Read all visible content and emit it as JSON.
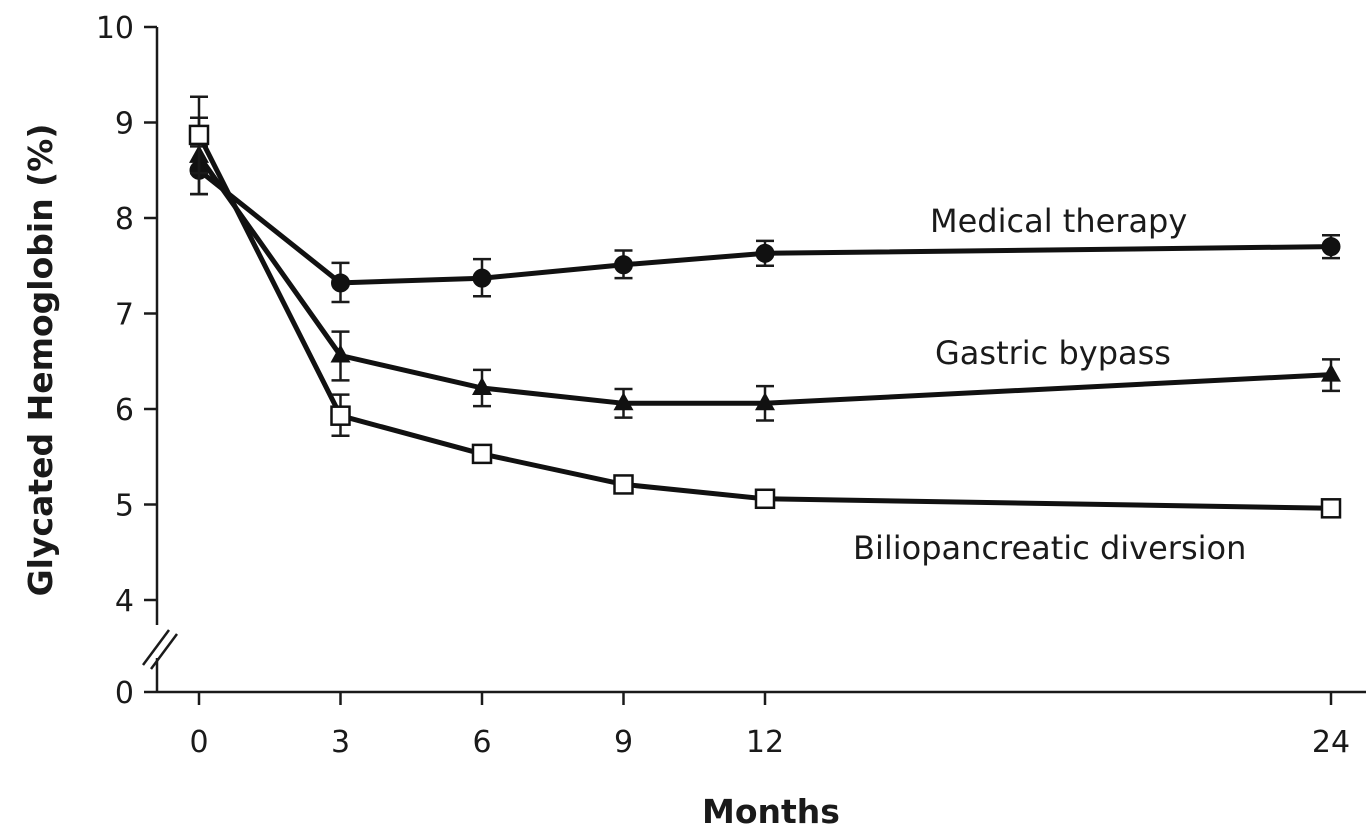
{
  "chart_data": {
    "type": "line",
    "title": "",
    "xlabel": "Months",
    "ylabel": "Glycated Hemoglobin (%)",
    "x": [
      0,
      3,
      6,
      9,
      12,
      24
    ],
    "x_tick_labels": [
      "0",
      "3",
      "6",
      "9",
      "12",
      "24"
    ],
    "ylim": [
      0,
      10
    ],
    "y_axis_break": [
      0,
      3.7
    ],
    "y_tick_values": [
      0,
      4,
      5,
      6,
      7,
      8,
      9,
      10
    ],
    "y_tick_labels": [
      "0",
      "4",
      "5",
      "6",
      "7",
      "8",
      "9",
      "10"
    ],
    "grid": false,
    "series": [
      {
        "name": "Medical therapy",
        "marker": "filled-circle",
        "values": [
          8.5,
          7.32,
          7.37,
          7.51,
          7.63,
          7.7
        ],
        "err_low": [
          8.25,
          7.12,
          7.18,
          7.37,
          7.5,
          7.58
        ],
        "err_high": [
          8.75,
          7.53,
          7.57,
          7.66,
          7.76,
          7.82
        ]
      },
      {
        "name": "Gastric bypass",
        "marker": "filled-triangle",
        "values": [
          8.65,
          6.56,
          6.22,
          6.06,
          6.06,
          6.36
        ],
        "err_low": [
          8.25,
          6.3,
          6.03,
          5.91,
          5.88,
          6.19
        ],
        "err_high": [
          9.05,
          6.81,
          6.41,
          6.21,
          6.24,
          6.52
        ]
      },
      {
        "name": "Biliopancreatic diversion",
        "marker": "open-square",
        "values": [
          8.87,
          5.93,
          5.53,
          5.21,
          5.06,
          4.96
        ],
        "err_low": [
          8.47,
          5.72,
          5.45,
          5.16,
          4.97,
          4.87
        ],
        "err_high": [
          9.27,
          6.15,
          5.61,
          5.26,
          5.15,
          5.04
        ]
      }
    ]
  }
}
